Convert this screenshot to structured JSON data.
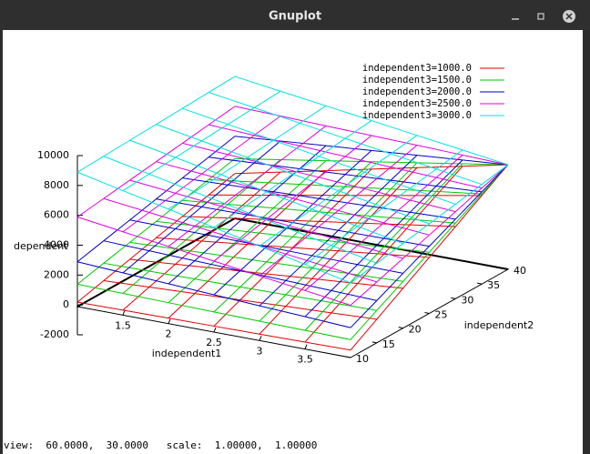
{
  "window": {
    "title": "Gnuplot",
    "status": "view:  60.0000,  30.0000   scale:  1.00000,  1.00000"
  },
  "chart_data": {
    "type": "wireframe3d",
    "x_label": "independent1",
    "y_label": "independent2",
    "z_label": "dependent",
    "x": [
      1,
      1.5,
      2,
      2.5,
      3,
      3.5,
      4
    ],
    "y": [
      10,
      15,
      20,
      25,
      30,
      35,
      40
    ],
    "xlim": [
      1,
      4
    ],
    "xticks": [
      1.5,
      2,
      2.5,
      3,
      3.5
    ],
    "ylim": [
      10,
      40
    ],
    "yticks": [
      10,
      15,
      20,
      25,
      30,
      35,
      40
    ],
    "zlim": [
      -2000,
      10000
    ],
    "zticks": [
      -2000,
      0,
      2000,
      4000,
      6000,
      8000,
      10000
    ],
    "legend": "top-right",
    "series": [
      {
        "name": "independent3=1000.0",
        "color": "#e00000",
        "values": [
          [
            300,
            330,
            370,
            400,
            430,
            470,
            500
          ],
          [
            750,
            890,
            1030,
            1170,
            1310,
            1440,
            1580
          ],
          [
            1200,
            1440,
            1690,
            1930,
            2180,
            2420,
            2670
          ],
          [
            1650,
            2000,
            2350,
            2700,
            3050,
            3400,
            3750
          ],
          [
            2100,
            2560,
            3010,
            3470,
            3920,
            4380,
            4830
          ],
          [
            2550,
            3110,
            3670,
            4230,
            4790,
            5360,
            5920
          ],
          [
            3000,
            3670,
            4330,
            5000,
            5670,
            6330,
            7000
          ]
        ]
      },
      {
        "name": "independent3=1500.0",
        "color": "#00c800",
        "values": [
          [
            1500,
            1450,
            1400,
            1350,
            1300,
            1250,
            1200
          ],
          [
            1920,
            1960,
            2000,
            2040,
            2080,
            2130,
            2170
          ],
          [
            2330,
            2470,
            2600,
            2730,
            2870,
            3000,
            3130
          ],
          [
            2750,
            2980,
            3200,
            3430,
            3650,
            3880,
            4100
          ],
          [
            3170,
            3480,
            3800,
            4120,
            4430,
            4750,
            5070
          ],
          [
            3580,
            3990,
            4400,
            4810,
            5220,
            5630,
            6030
          ],
          [
            4000,
            4500,
            5000,
            5500,
            6000,
            6500,
            7000
          ]
        ]
      },
      {
        "name": "independent3=2000.0",
        "color": "#0000c8",
        "values": [
          [
            3000,
            2830,
            2670,
            2500,
            2330,
            2170,
            2000
          ],
          [
            3420,
            3320,
            3220,
            3130,
            3030,
            2930,
            2830
          ],
          [
            3830,
            3810,
            3780,
            3750,
            3720,
            3690,
            3670
          ],
          [
            4250,
            4290,
            4330,
            4380,
            4420,
            4460,
            4500
          ],
          [
            4670,
            4780,
            4890,
            5000,
            5110,
            5220,
            5330
          ],
          [
            5080,
            5260,
            5440,
            5630,
            5810,
            5990,
            6170
          ],
          [
            5500,
            5750,
            6000,
            6250,
            6500,
            6750,
            7000
          ]
        ]
      },
      {
        "name": "independent3=2500.0",
        "color": "#e000e0",
        "values": [
          [
            6000,
            5580,
            5170,
            4750,
            4330,
            3920,
            3500
          ],
          [
            6250,
            5890,
            5530,
            5170,
            4810,
            4440,
            4080
          ],
          [
            6500,
            6190,
            5890,
            5580,
            5280,
            4970,
            4670
          ],
          [
            6750,
            6500,
            6250,
            6000,
            5750,
            5500,
            5250
          ],
          [
            7000,
            6810,
            6610,
            6420,
            6220,
            6030,
            5830
          ],
          [
            7250,
            7110,
            6970,
            6830,
            6690,
            6560,
            6420
          ],
          [
            7500,
            7420,
            7330,
            7250,
            7170,
            7080,
            7000
          ]
        ]
      },
      {
        "name": "independent3=3000.0",
        "color": "#00e0e0",
        "values": [
          [
            9000,
            8330,
            7670,
            7000,
            6330,
            5670,
            5000
          ],
          [
            9080,
            8460,
            7830,
            7210,
            6580,
            5960,
            5330
          ],
          [
            9170,
            8580,
            8000,
            7420,
            6830,
            6250,
            5670
          ],
          [
            9250,
            8710,
            8170,
            7630,
            7080,
            6540,
            6000
          ],
          [
            9330,
            8830,
            8330,
            7830,
            7330,
            6830,
            6330
          ],
          [
            9420,
            8960,
            8500,
            8040,
            7580,
            7130,
            6670
          ],
          [
            9500,
            9080,
            8670,
            8250,
            7830,
            7420,
            7000
          ]
        ]
      }
    ]
  }
}
